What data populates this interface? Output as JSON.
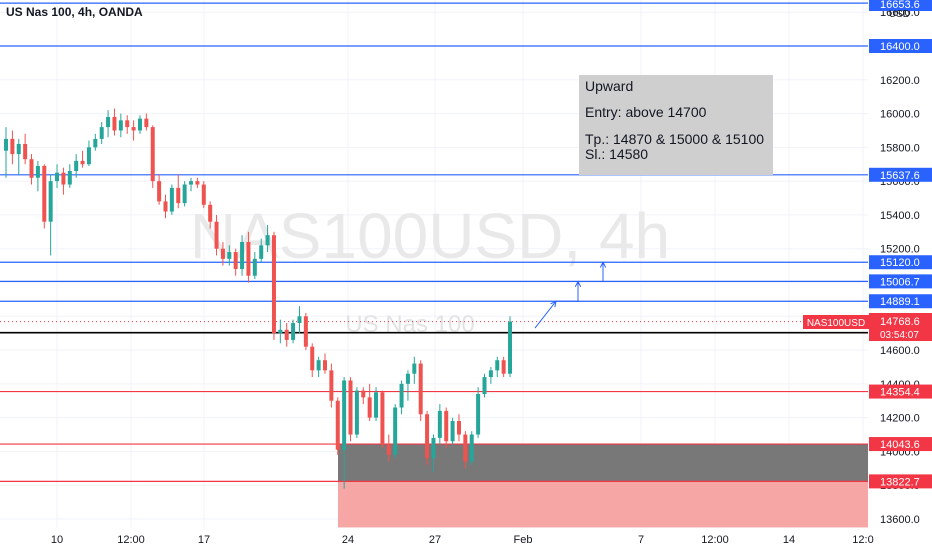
{
  "header": {
    "title": "US Nas 100, 4h, OANDA",
    "currency": "USD"
  },
  "watermark": {
    "main": "NAS100USD, 4h",
    "sub": "US Nas 100"
  },
  "annotation": {
    "lines": [
      "Upward",
      "Entry: above 14700",
      "Tp.: 14870 & 15000 & 15100",
      "Sl.: 14580"
    ]
  },
  "colors": {
    "up": "#26a69a",
    "down": "#ef5350",
    "blue_level": "#2962ff",
    "red_level": "#f23645",
    "black_level": "#000000",
    "buy_zone": "#787878",
    "stop_zone": "#f7a6a6",
    "note_bg": "#cfcfcf"
  },
  "chart_data": {
    "type": "candlestick",
    "title": "US Nas 100, 4h, OANDA",
    "ylim": [
      13550,
      16700
    ],
    "y_ticks": [
      13600,
      13800,
      14000,
      14200,
      14400,
      14600,
      14800,
      15000,
      15200,
      15400,
      15600,
      15800,
      16000,
      16200,
      16400,
      16600
    ],
    "x_ticks": [
      "10",
      "12:00",
      "17",
      "24",
      "27",
      "Feb",
      "7",
      "12:00",
      "14",
      "12:0"
    ],
    "levels": [
      {
        "price": 16653.6,
        "label": "16653.6",
        "color": "blue"
      },
      {
        "price": 16400.0,
        "label": "16400.0",
        "color": "blue"
      },
      {
        "price": 15637.6,
        "label": "15637.6",
        "color": "blue"
      },
      {
        "price": 15120.0,
        "label": "15120.0",
        "color": "blue"
      },
      {
        "price": 15006.7,
        "label": "15006.7",
        "color": "blue"
      },
      {
        "price": 14889.1,
        "label": "14889.1",
        "color": "blue"
      },
      {
        "price": 14702.7,
        "label": "14702.7",
        "color": "black"
      },
      {
        "price": 14354.4,
        "label": "14354.4",
        "color": "red"
      },
      {
        "price": 14043.6,
        "label": "14043.6",
        "color": "red"
      },
      {
        "price": 13822.7,
        "label": "13822.7",
        "color": "red"
      }
    ],
    "current_price": {
      "symbol": "NAS100USD",
      "price": "14768.6",
      "countdown": "03:54:07"
    },
    "zones": [
      {
        "name": "buy",
        "top": 14043.6,
        "bottom": 13822.7
      },
      {
        "name": "stop",
        "top": 13822.7,
        "bottom": 13550
      }
    ],
    "candles": [
      {
        "o": 15780,
        "h": 15920,
        "l": 15620,
        "c": 15850
      },
      {
        "o": 15850,
        "h": 15900,
        "l": 15700,
        "c": 15760
      },
      {
        "o": 15760,
        "h": 15850,
        "l": 15640,
        "c": 15820
      },
      {
        "o": 15820,
        "h": 15880,
        "l": 15700,
        "c": 15730
      },
      {
        "o": 15730,
        "h": 15760,
        "l": 15580,
        "c": 15620
      },
      {
        "o": 15620,
        "h": 15720,
        "l": 15540,
        "c": 15690
      },
      {
        "o": 15690,
        "h": 15700,
        "l": 15320,
        "c": 15360
      },
      {
        "o": 15360,
        "h": 15640,
        "l": 15160,
        "c": 15600
      },
      {
        "o": 15600,
        "h": 15700,
        "l": 15560,
        "c": 15650
      },
      {
        "o": 15650,
        "h": 15680,
        "l": 15520,
        "c": 15580
      },
      {
        "o": 15580,
        "h": 15700,
        "l": 15560,
        "c": 15660
      },
      {
        "o": 15660,
        "h": 15760,
        "l": 15620,
        "c": 15720
      },
      {
        "o": 15720,
        "h": 15780,
        "l": 15680,
        "c": 15700
      },
      {
        "o": 15700,
        "h": 15840,
        "l": 15690,
        "c": 15800
      },
      {
        "o": 15800,
        "h": 15880,
        "l": 15780,
        "c": 15850
      },
      {
        "o": 15850,
        "h": 15950,
        "l": 15820,
        "c": 15920
      },
      {
        "o": 15920,
        "h": 16020,
        "l": 15860,
        "c": 15980
      },
      {
        "o": 15980,
        "h": 16030,
        "l": 15870,
        "c": 15900
      },
      {
        "o": 15900,
        "h": 16000,
        "l": 15860,
        "c": 15960
      },
      {
        "o": 15960,
        "h": 15990,
        "l": 15880,
        "c": 15920
      },
      {
        "o": 15920,
        "h": 15960,
        "l": 15840,
        "c": 15900
      },
      {
        "o": 15900,
        "h": 15990,
        "l": 15880,
        "c": 15970
      },
      {
        "o": 15970,
        "h": 16000,
        "l": 15900,
        "c": 15920
      },
      {
        "o": 15920,
        "h": 15930,
        "l": 15560,
        "c": 15600
      },
      {
        "o": 15600,
        "h": 15640,
        "l": 15460,
        "c": 15480
      },
      {
        "o": 15480,
        "h": 15520,
        "l": 15380,
        "c": 15420
      },
      {
        "o": 15420,
        "h": 15580,
        "l": 15400,
        "c": 15560
      },
      {
        "o": 15560,
        "h": 15640,
        "l": 15440,
        "c": 15470
      },
      {
        "o": 15470,
        "h": 15600,
        "l": 15450,
        "c": 15580
      },
      {
        "o": 15580,
        "h": 15620,
        "l": 15540,
        "c": 15600
      },
      {
        "o": 15600,
        "h": 15620,
        "l": 15560,
        "c": 15580
      },
      {
        "o": 15580,
        "h": 15600,
        "l": 15440,
        "c": 15460
      },
      {
        "o": 15460,
        "h": 15480,
        "l": 15320,
        "c": 15360
      },
      {
        "o": 15360,
        "h": 15400,
        "l": 15160,
        "c": 15200
      },
      {
        "o": 15200,
        "h": 15240,
        "l": 15100,
        "c": 15140
      },
      {
        "o": 15140,
        "h": 15220,
        "l": 15100,
        "c": 15180
      },
      {
        "o": 15180,
        "h": 15200,
        "l": 15040,
        "c": 15080
      },
      {
        "o": 15080,
        "h": 15280,
        "l": 15040,
        "c": 15240
      },
      {
        "o": 15240,
        "h": 15300,
        "l": 15000,
        "c": 15040
      },
      {
        "o": 15040,
        "h": 15180,
        "l": 15020,
        "c": 15140
      },
      {
        "o": 15140,
        "h": 15260,
        "l": 15120,
        "c": 15220
      },
      {
        "o": 15220,
        "h": 15340,
        "l": 15180,
        "c": 15280
      },
      {
        "o": 15280,
        "h": 15300,
        "l": 14660,
        "c": 14700
      },
      {
        "o": 14700,
        "h": 14780,
        "l": 14640,
        "c": 14720
      },
      {
        "o": 14720,
        "h": 14760,
        "l": 14620,
        "c": 14660
      },
      {
        "o": 14660,
        "h": 14780,
        "l": 14640,
        "c": 14760
      },
      {
        "o": 14760,
        "h": 14860,
        "l": 14700,
        "c": 14800
      },
      {
        "o": 14800,
        "h": 14820,
        "l": 14600,
        "c": 14620
      },
      {
        "o": 14620,
        "h": 14640,
        "l": 14440,
        "c": 14480
      },
      {
        "o": 14480,
        "h": 14560,
        "l": 14440,
        "c": 14540
      },
      {
        "o": 14540,
        "h": 14580,
        "l": 14460,
        "c": 14480
      },
      {
        "o": 14480,
        "h": 14520,
        "l": 14260,
        "c": 14300
      },
      {
        "o": 14300,
        "h": 14320,
        "l": 13980,
        "c": 14010
      },
      {
        "o": 14010,
        "h": 14440,
        "l": 13780,
        "c": 14420
      },
      {
        "o": 14420,
        "h": 14440,
        "l": 14060,
        "c": 14100
      },
      {
        "o": 14100,
        "h": 14380,
        "l": 14080,
        "c": 14360
      },
      {
        "o": 14360,
        "h": 14380,
        "l": 14280,
        "c": 14320
      },
      {
        "o": 14320,
        "h": 14400,
        "l": 14180,
        "c": 14200
      },
      {
        "o": 14200,
        "h": 14380,
        "l": 14180,
        "c": 14350
      },
      {
        "o": 14350,
        "h": 14360,
        "l": 14020,
        "c": 14040
      },
      {
        "o": 14040,
        "h": 14100,
        "l": 13940,
        "c": 13980
      },
      {
        "o": 13980,
        "h": 14280,
        "l": 13960,
        "c": 14260
      },
      {
        "o": 14260,
        "h": 14420,
        "l": 14220,
        "c": 14400
      },
      {
        "o": 14400,
        "h": 14480,
        "l": 14300,
        "c": 14460
      },
      {
        "o": 14460,
        "h": 14560,
        "l": 14400,
        "c": 14520
      },
      {
        "o": 14520,
        "h": 14540,
        "l": 14180,
        "c": 14220
      },
      {
        "o": 14220,
        "h": 14240,
        "l": 13920,
        "c": 13960
      },
      {
        "o": 13960,
        "h": 14100,
        "l": 13880,
        "c": 14080
      },
      {
        "o": 14080,
        "h": 14280,
        "l": 14040,
        "c": 14240
      },
      {
        "o": 14240,
        "h": 14260,
        "l": 14020,
        "c": 14060
      },
      {
        "o": 14060,
        "h": 14200,
        "l": 14040,
        "c": 14180
      },
      {
        "o": 14180,
        "h": 14220,
        "l": 14060,
        "c": 14100
      },
      {
        "o": 14100,
        "h": 14120,
        "l": 13900,
        "c": 13940
      },
      {
        "o": 13940,
        "h": 14120,
        "l": 13920,
        "c": 14100
      },
      {
        "o": 14100,
        "h": 14380,
        "l": 14080,
        "c": 14340
      },
      {
        "o": 14340,
        "h": 14460,
        "l": 14320,
        "c": 14440
      },
      {
        "o": 14440,
        "h": 14500,
        "l": 14400,
        "c": 14480
      },
      {
        "o": 14480,
        "h": 14560,
        "l": 14440,
        "c": 14540
      },
      {
        "o": 14540,
        "h": 14560,
        "l": 14440,
        "c": 14460
      },
      {
        "o": 14460,
        "h": 14800,
        "l": 14440,
        "c": 14769
      }
    ]
  }
}
